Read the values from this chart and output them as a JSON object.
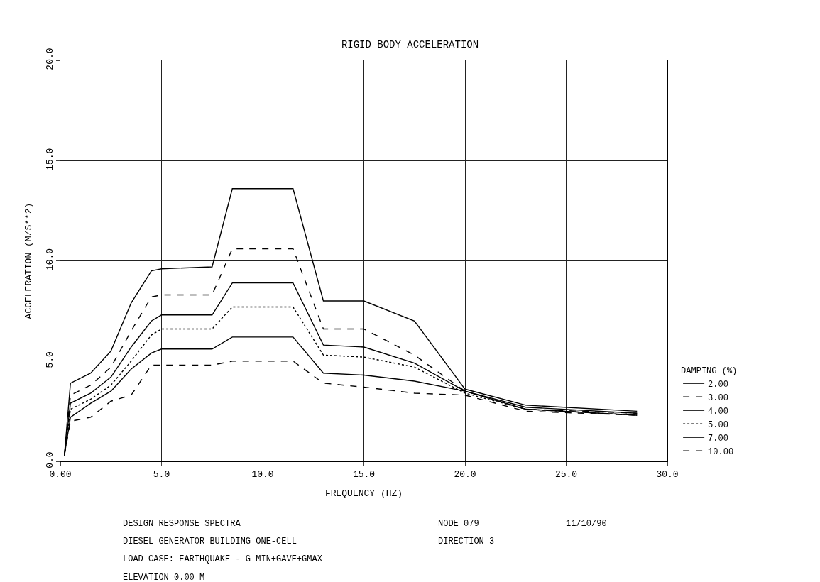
{
  "chart_data": {
    "type": "line",
    "title": "RIGID BODY ACCELERATION",
    "xlabel": "FREQUENCY (HZ)",
    "ylabel": "ACCELERATION (M/S**2)",
    "legend_title": "DAMPING (%)",
    "x": [
      0.2,
      0.5,
      1.5,
      2.5,
      3.5,
      4.5,
      5.0,
      7.5,
      8.5,
      11.5,
      13.0,
      15.0,
      17.5,
      20.0,
      23.0,
      28.5
    ],
    "series": [
      {
        "name": "2.00",
        "color": "#000000",
        "line_style": "solid",
        "values": [
          0.3,
          3.9,
          4.4,
          5.5,
          7.9,
          9.5,
          9.6,
          9.7,
          13.6,
          13.6,
          8.0,
          8.0,
          7.0,
          3.6,
          2.8,
          2.5
        ]
      },
      {
        "name": "3.00",
        "color": "#000000",
        "line_style": "dashed",
        "values": [
          0.3,
          3.3,
          3.8,
          4.7,
          6.5,
          8.2,
          8.3,
          8.3,
          10.6,
          10.6,
          6.6,
          6.6,
          5.3,
          3.5,
          2.6,
          2.4
        ]
      },
      {
        "name": "4.00",
        "color": "#000000",
        "line_style": "solid",
        "values": [
          0.3,
          2.9,
          3.4,
          4.2,
          5.7,
          7.0,
          7.3,
          7.3,
          8.9,
          8.9,
          5.8,
          5.7,
          4.9,
          3.5,
          2.7,
          2.4
        ]
      },
      {
        "name": "5.00",
        "color": "#000000",
        "line_style": "dotted",
        "values": [
          0.3,
          2.6,
          3.1,
          3.8,
          5.0,
          6.3,
          6.6,
          6.6,
          7.7,
          7.7,
          5.3,
          5.2,
          4.7,
          3.4,
          2.6,
          2.3
        ]
      },
      {
        "name": "7.00",
        "color": "#000000",
        "line_style": "solid",
        "values": [
          0.3,
          2.2,
          2.9,
          3.5,
          4.6,
          5.4,
          5.6,
          5.6,
          6.2,
          6.2,
          4.4,
          4.3,
          4.0,
          3.5,
          2.6,
          2.3
        ]
      },
      {
        "name": "10.00",
        "color": "#000000",
        "line_style": "dashed",
        "values": [
          0.3,
          2.0,
          2.2,
          3.0,
          3.3,
          4.8,
          4.8,
          4.8,
          5.0,
          5.0,
          3.9,
          3.7,
          3.4,
          3.3,
          2.5,
          2.3
        ]
      }
    ],
    "xlim": [
      0,
      30
    ],
    "xticks": [
      {
        "value": 0,
        "label": "0.00"
      },
      {
        "value": 5,
        "label": "5.0"
      },
      {
        "value": 10,
        "label": "10.0"
      },
      {
        "value": 15,
        "label": "15.0"
      },
      {
        "value": 20,
        "label": "20.0"
      },
      {
        "value": 25,
        "label": "25.0"
      },
      {
        "value": 30,
        "label": "30.0"
      }
    ],
    "ylim": [
      0,
      20
    ],
    "yticks": [
      {
        "value": 0,
        "label": "0.0"
      },
      {
        "value": 5,
        "label": "5.0"
      },
      {
        "value": 10,
        "label": "10.0"
      },
      {
        "value": 15,
        "label": "15.0"
      },
      {
        "value": 20,
        "label": "20.0"
      }
    ],
    "grid": true,
    "legend": "bottom right",
    "annotations": [
      "DESIGN RESPONSE SPECTRA",
      "DIESEL GENERATOR BUILDING ONE-CELL",
      "LOAD CASE: EARTHQUAKE - G MIN+GAVE+GMAX",
      "ELEVATION 0.00 M",
      "NODE 079",
      "DIRECTION 3",
      "11/10/90"
    ]
  }
}
